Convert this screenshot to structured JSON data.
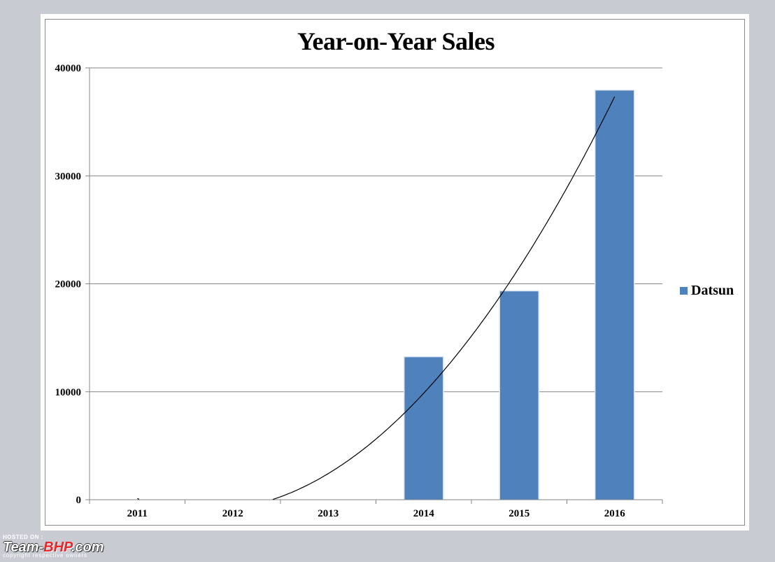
{
  "chart_data": {
    "type": "bar",
    "title": "Year-on-Year Sales",
    "categories": [
      "2011",
      "2012",
      "2013",
      "2014",
      "2015",
      "2016"
    ],
    "series": [
      {
        "name": "Datsun",
        "values": [
          0,
          0,
          0,
          13200,
          19300,
          37900
        ],
        "color": "#4f81bd"
      }
    ],
    "trendline": {
      "type": "polynomial",
      "color": "#000000"
    },
    "ylim": [
      0,
      40000
    ],
    "yticks": [
      "0",
      "10000",
      "20000",
      "30000",
      "40000"
    ],
    "xlabel": "",
    "ylabel": "",
    "grid": true,
    "legend_position": "right"
  },
  "watermark": {
    "hosted": "HOSTED ON :",
    "brand_prefix": "Team-",
    "brand_accent": "BHP",
    "brand_suffix": ".com",
    "copyright": "copyright respective owners"
  },
  "colors": {
    "background": "#c8ccd2",
    "bar": "#4f81bd",
    "grid": "#868686"
  }
}
